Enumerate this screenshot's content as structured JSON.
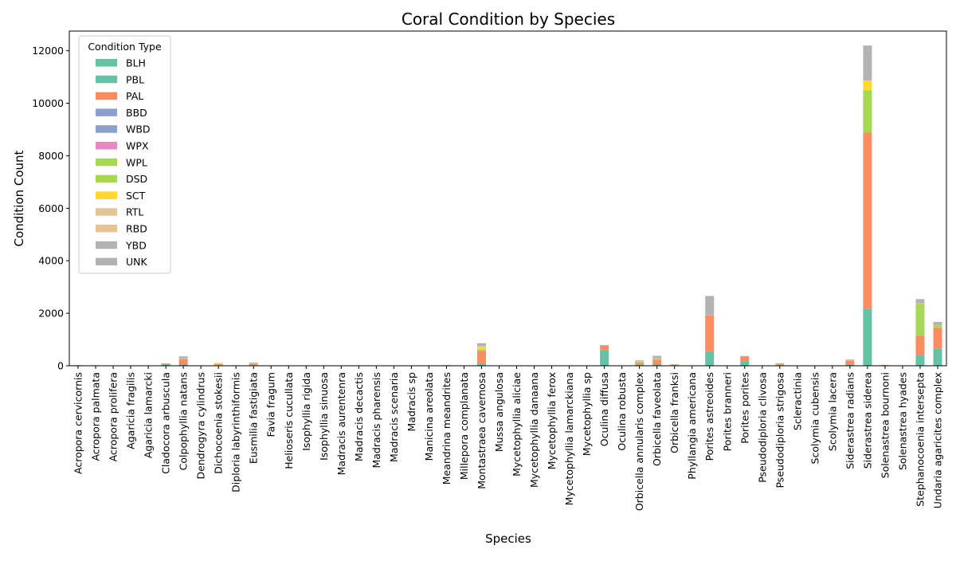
{
  "chart_data": {
    "type": "bar",
    "stacked": true,
    "title": "Coral Condition by Species",
    "xlabel": "Species",
    "ylabel": "Condition Count",
    "ylim": [
      0,
      12750
    ],
    "yticks": [
      0,
      2000,
      4000,
      6000,
      8000,
      10000,
      12000
    ],
    "grid": false,
    "legend": {
      "title": "Condition Type",
      "placement": "top-left"
    },
    "categories": [
      "Acropora cervicornis",
      "Acropora palmata",
      "Acropora prolifera",
      "Agaricia fragilis",
      "Agaricia lamarcki",
      "Cladocora arbuscula",
      "Colpophyllia natans",
      "Dendrogyra cylindrus",
      "Dichocoenia stokesii",
      "Diploria labyrinthiformis",
      "Eusmilia fastigiata",
      "Favia fragum",
      "Helioseris cucullata",
      "Isophyllia rigida",
      "Isophyllia sinuosa",
      "Madracis aurentenra",
      "Madracis decactis",
      "Madracis pharensis",
      "Madracis scenaria",
      "Madracis sp",
      "Manicina areolata",
      "Meandrina meandrites",
      "Millepora complanata",
      "Montastraea cavernosa",
      "Mussa angulosa",
      "Mycetophyllia aliciae",
      "Mycetophyllia danaana",
      "Mycetophyllia ferox",
      "Mycetophyllia lamarckiana",
      "Mycetophyllia sp",
      "Oculina diffusa",
      "Oculina robusta",
      "Orbicella annularis complex",
      "Orbicella faveolata",
      "Orbicella franksi",
      "Phyllangia americana",
      "Porites astreoides",
      "Porites branneri",
      "Porites porites",
      "Pseudodiploria clivosa",
      "Pseudodiploria strigosa",
      "Scleractinia",
      "Scolymia cubensis",
      "Scolymia lacera",
      "Siderastrea radians",
      "Siderastrea siderea",
      "Solenastrea bournoni",
      "Solenastrea hyades",
      "Stephanocoenia intersepta",
      "Undaria agaricites complex"
    ],
    "series": [
      {
        "name": "BLH",
        "color": "#66c2a5",
        "values": [
          0,
          0,
          0,
          0,
          0,
          0,
          0,
          0,
          0,
          0,
          0,
          0,
          0,
          0,
          0,
          0,
          0,
          0,
          0,
          0,
          0,
          0,
          0,
          0,
          0,
          0,
          0,
          0,
          0,
          0,
          0,
          0,
          0,
          0,
          0,
          0,
          0,
          0,
          0,
          0,
          0,
          0,
          0,
          0,
          0,
          0,
          0,
          0,
          0,
          0
        ]
      },
      {
        "name": "PBL",
        "color": "#66c2a5",
        "values": [
          15,
          5,
          0,
          5,
          0,
          80,
          60,
          0,
          20,
          5,
          20,
          0,
          0,
          0,
          0,
          0,
          5,
          0,
          0,
          0,
          5,
          5,
          0,
          80,
          0,
          0,
          0,
          0,
          0,
          0,
          580,
          0,
          40,
          60,
          20,
          0,
          550,
          0,
          180,
          0,
          20,
          0,
          0,
          0,
          60,
          2180,
          10,
          0,
          420,
          660
        ]
      },
      {
        "name": "PAL",
        "color": "#fc8d62",
        "values": [
          10,
          15,
          0,
          10,
          0,
          5,
          200,
          0,
          40,
          10,
          50,
          0,
          0,
          0,
          0,
          0,
          10,
          0,
          0,
          0,
          10,
          15,
          0,
          480,
          0,
          0,
          0,
          0,
          0,
          0,
          190,
          0,
          70,
          170,
          20,
          0,
          1380,
          0,
          170,
          0,
          40,
          0,
          0,
          0,
          140,
          6700,
          20,
          0,
          730,
          780
        ]
      },
      {
        "name": "BBD",
        "color": "#8da0cb",
        "values": [
          0,
          0,
          0,
          0,
          0,
          0,
          0,
          0,
          0,
          0,
          0,
          0,
          0,
          0,
          0,
          0,
          0,
          0,
          0,
          0,
          0,
          0,
          0,
          0,
          0,
          0,
          0,
          0,
          0,
          0,
          0,
          0,
          0,
          0,
          0,
          0,
          0,
          0,
          0,
          0,
          0,
          0,
          0,
          0,
          0,
          0,
          0,
          0,
          0,
          0
        ]
      },
      {
        "name": "WBD",
        "color": "#8da0cb",
        "values": [
          0,
          0,
          0,
          0,
          0,
          0,
          0,
          0,
          0,
          0,
          0,
          0,
          0,
          0,
          0,
          0,
          0,
          0,
          0,
          0,
          0,
          0,
          0,
          0,
          0,
          0,
          0,
          0,
          0,
          0,
          0,
          0,
          0,
          0,
          0,
          0,
          0,
          0,
          0,
          0,
          0,
          0,
          0,
          0,
          0,
          0,
          0,
          0,
          0,
          0
        ]
      },
      {
        "name": "WPX",
        "color": "#e78ac3",
        "values": [
          0,
          0,
          0,
          0,
          0,
          0,
          0,
          0,
          0,
          0,
          0,
          0,
          0,
          0,
          0,
          0,
          0,
          0,
          0,
          0,
          0,
          0,
          0,
          0,
          0,
          0,
          0,
          0,
          0,
          0,
          0,
          0,
          0,
          0,
          0,
          0,
          0,
          0,
          0,
          0,
          0,
          0,
          0,
          0,
          0,
          0,
          0,
          0,
          0,
          0
        ]
      },
      {
        "name": "WPL",
        "color": "#a6d854",
        "values": [
          0,
          0,
          0,
          0,
          0,
          0,
          0,
          0,
          0,
          0,
          0,
          0,
          0,
          0,
          0,
          0,
          0,
          0,
          0,
          0,
          0,
          0,
          0,
          0,
          0,
          0,
          0,
          0,
          0,
          0,
          0,
          0,
          0,
          0,
          0,
          0,
          0,
          0,
          0,
          0,
          0,
          0,
          0,
          0,
          0,
          0,
          0,
          0,
          0,
          0
        ]
      },
      {
        "name": "DSD",
        "color": "#a6d854",
        "values": [
          0,
          0,
          0,
          0,
          0,
          0,
          10,
          0,
          10,
          0,
          0,
          0,
          0,
          0,
          0,
          0,
          0,
          0,
          0,
          0,
          0,
          0,
          0,
          60,
          0,
          0,
          0,
          0,
          0,
          0,
          0,
          0,
          50,
          30,
          0,
          0,
          0,
          0,
          0,
          0,
          0,
          0,
          0,
          0,
          0,
          1620,
          0,
          0,
          1200,
          100
        ]
      },
      {
        "name": "SCT",
        "color": "#ffd92f",
        "values": [
          0,
          0,
          0,
          0,
          0,
          0,
          0,
          0,
          10,
          0,
          0,
          0,
          0,
          0,
          0,
          0,
          0,
          0,
          0,
          0,
          0,
          0,
          0,
          110,
          0,
          0,
          0,
          0,
          0,
          0,
          0,
          0,
          0,
          0,
          0,
          0,
          0,
          0,
          0,
          0,
          0,
          0,
          0,
          0,
          0,
          370,
          0,
          0,
          20,
          0
        ]
      },
      {
        "name": "RTL",
        "color": "#e5c494",
        "values": [
          0,
          0,
          0,
          0,
          0,
          0,
          0,
          0,
          0,
          0,
          0,
          0,
          0,
          0,
          0,
          0,
          0,
          0,
          0,
          0,
          0,
          0,
          0,
          0,
          0,
          0,
          0,
          0,
          0,
          0,
          0,
          0,
          0,
          0,
          0,
          0,
          0,
          0,
          0,
          0,
          0,
          0,
          0,
          0,
          0,
          0,
          0,
          0,
          0,
          0
        ]
      },
      {
        "name": "RBD",
        "color": "#e5c494",
        "values": [
          5,
          0,
          0,
          0,
          0,
          0,
          10,
          0,
          30,
          5,
          10,
          0,
          0,
          0,
          0,
          0,
          5,
          0,
          0,
          0,
          5,
          5,
          0,
          20,
          0,
          0,
          0,
          0,
          0,
          0,
          10,
          0,
          30,
          20,
          10,
          0,
          10,
          0,
          0,
          0,
          30,
          0,
          0,
          0,
          20,
          0,
          0,
          0,
          10,
          10
        ]
      },
      {
        "name": "YBD",
        "color": "#b3b3b3",
        "values": [
          0,
          0,
          0,
          0,
          0,
          0,
          0,
          0,
          0,
          0,
          0,
          0,
          0,
          0,
          0,
          0,
          0,
          0,
          0,
          0,
          0,
          0,
          0,
          0,
          0,
          0,
          0,
          0,
          0,
          0,
          0,
          0,
          0,
          0,
          0,
          0,
          0,
          0,
          0,
          0,
          0,
          0,
          0,
          0,
          0,
          0,
          0,
          0,
          0,
          0
        ]
      },
      {
        "name": "UNK",
        "color": "#b3b3b3",
        "values": [
          0,
          0,
          0,
          0,
          0,
          0,
          80,
          0,
          0,
          0,
          40,
          0,
          0,
          0,
          0,
          0,
          0,
          0,
          0,
          0,
          0,
          0,
          0,
          110,
          0,
          0,
          0,
          0,
          0,
          0,
          10,
          0,
          20,
          100,
          10,
          0,
          720,
          0,
          20,
          0,
          10,
          0,
          0,
          0,
          20,
          1330,
          0,
          0,
          160,
          120
        ]
      }
    ]
  }
}
